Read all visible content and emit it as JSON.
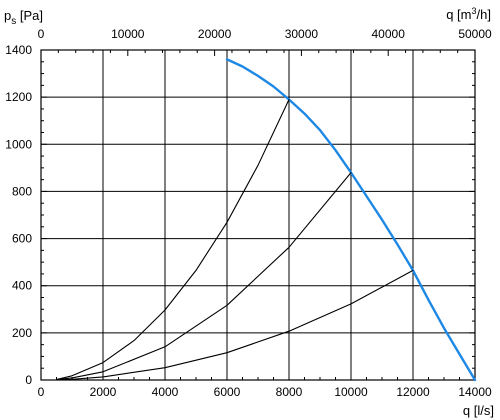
{
  "chart_data": {
    "type": "line",
    "ylabel_main": "p",
    "ylabel_sub": "s",
    "ylabel_unit": " [Pa]",
    "xlabel_bottom": "q [l/s]",
    "xlabel_top_main": "q [m",
    "xlabel_top_sup": "3",
    "xlabel_top_end": "/h]",
    "xlim": [
      0,
      14000
    ],
    "ylim": [
      0,
      1400
    ],
    "x2lim": [
      0,
      50000
    ],
    "x_ticks": [
      0,
      2000,
      4000,
      6000,
      8000,
      10000,
      12000,
      14000
    ],
    "y_ticks": [
      0,
      200,
      400,
      600,
      800,
      1000,
      1200,
      1400
    ],
    "x2_ticks": [
      0,
      10000,
      20000,
      30000,
      40000,
      50000
    ],
    "grid": true,
    "series": [
      {
        "kind": "fan-curve",
        "color": "#1e88e5",
        "x": [
          6000,
          6500,
          7000,
          7500,
          8000,
          8500,
          9000,
          9500,
          10000,
          10500,
          11000,
          11500,
          12000,
          12500,
          13000,
          13500,
          14000
        ],
        "y": [
          1360,
          1330,
          1290,
          1245,
          1190,
          1130,
          1060,
          975,
          880,
          780,
          680,
          575,
          465,
          340,
          220,
          110,
          0
        ]
      },
      {
        "kind": "system-curve",
        "color": "#000000",
        "x": [
          500,
          1000,
          2000,
          3000,
          4000,
          5000,
          6000,
          7000,
          8000
        ],
        "y": [
          2,
          18,
          74,
          167,
          297,
          465,
          669,
          911,
          1190
        ]
      },
      {
        "kind": "system-curve",
        "color": "#000000",
        "x": [
          500,
          1000,
          2000,
          4000,
          6000,
          8000,
          10000
        ],
        "y": [
          2,
          9,
          35,
          141,
          317,
          563,
          880
        ]
      },
      {
        "kind": "system-curve",
        "color": "#000000",
        "x": [
          500,
          1000,
          2000,
          4000,
          6000,
          8000,
          10000,
          12000
        ],
        "y": [
          1,
          3,
          13,
          52,
          116,
          207,
          323,
          465
        ]
      }
    ]
  }
}
